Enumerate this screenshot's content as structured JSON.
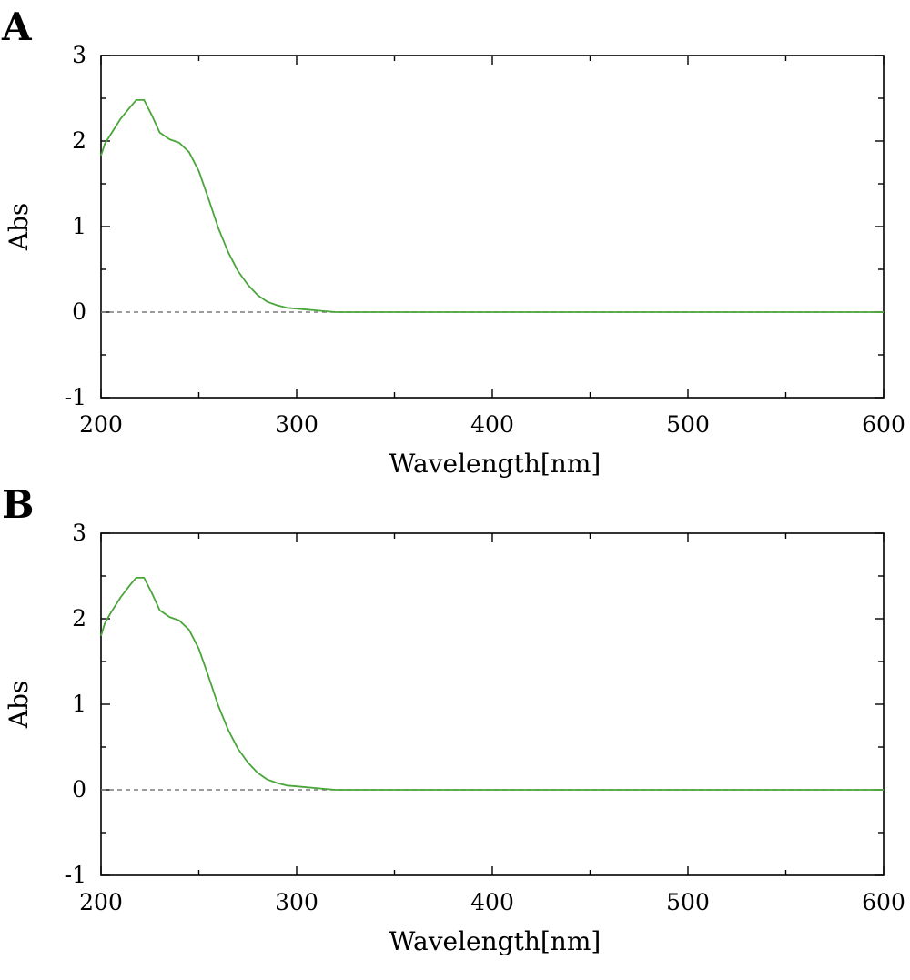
{
  "chart_data": [
    {
      "panel_label": "A",
      "type": "line",
      "xlabel": "Wavelength[nm]",
      "ylabel": "Abs",
      "xlim": [
        200,
        600
      ],
      "ylim": [
        -1,
        3
      ],
      "x_ticks": [
        200,
        300,
        400,
        500,
        600
      ],
      "y_ticks": [
        -1,
        0,
        1,
        2,
        3
      ],
      "x_tick_labels": [
        "200",
        "300",
        "400",
        "500",
        "600"
      ],
      "y_tick_labels": [
        "-1",
        "0",
        "1",
        "2",
        "3"
      ],
      "grid": false,
      "baseline": {
        "y": 0,
        "style": "dashed",
        "color": "#7a7a7a"
      },
      "series": [
        {
          "color": "#4aa63a",
          "x": [
            200,
            202,
            205,
            210,
            215,
            218,
            222,
            226,
            230,
            235,
            240,
            245,
            250,
            255,
            260,
            265,
            270,
            275,
            280,
            285,
            290,
            295,
            300,
            305,
            310,
            315,
            320,
            330,
            340,
            400,
            500,
            600
          ],
          "y": [
            1.83,
            1.97,
            2.08,
            2.26,
            2.4,
            2.48,
            2.48,
            2.3,
            2.1,
            2.02,
            1.98,
            1.87,
            1.65,
            1.32,
            0.98,
            0.7,
            0.48,
            0.32,
            0.2,
            0.12,
            0.08,
            0.05,
            0.04,
            0.03,
            0.02,
            0.01,
            0.0,
            0.0,
            0.0,
            0.0,
            0.0,
            0.0
          ]
        }
      ]
    },
    {
      "panel_label": "B",
      "type": "line",
      "xlabel": "Wavelength[nm]",
      "ylabel": "Abs",
      "xlim": [
        200,
        600
      ],
      "ylim": [
        -1,
        3
      ],
      "x_ticks": [
        200,
        300,
        400,
        500,
        600
      ],
      "y_ticks": [
        -1,
        0,
        1,
        2,
        3
      ],
      "x_tick_labels": [
        "200",
        "300",
        "400",
        "500",
        "600"
      ],
      "y_tick_labels": [
        "-1",
        "0",
        "1",
        "2",
        "3"
      ],
      "grid": false,
      "baseline": {
        "y": 0,
        "style": "dashed",
        "color": "#7a7a7a"
      },
      "series": [
        {
          "color": "#4aa63a",
          "x": [
            200,
            202,
            205,
            210,
            215,
            218,
            222,
            226,
            230,
            235,
            240,
            245,
            250,
            255,
            260,
            265,
            270,
            275,
            280,
            285,
            290,
            295,
            300,
            305,
            310,
            315,
            320,
            330,
            340,
            400,
            500,
            600
          ],
          "y": [
            1.8,
            1.95,
            2.07,
            2.25,
            2.4,
            2.48,
            2.48,
            2.3,
            2.1,
            2.02,
            1.98,
            1.87,
            1.65,
            1.32,
            0.98,
            0.7,
            0.48,
            0.32,
            0.2,
            0.12,
            0.08,
            0.05,
            0.04,
            0.03,
            0.02,
            0.01,
            0.0,
            0.0,
            0.0,
            0.0,
            0.0,
            0.0
          ]
        }
      ]
    }
  ]
}
